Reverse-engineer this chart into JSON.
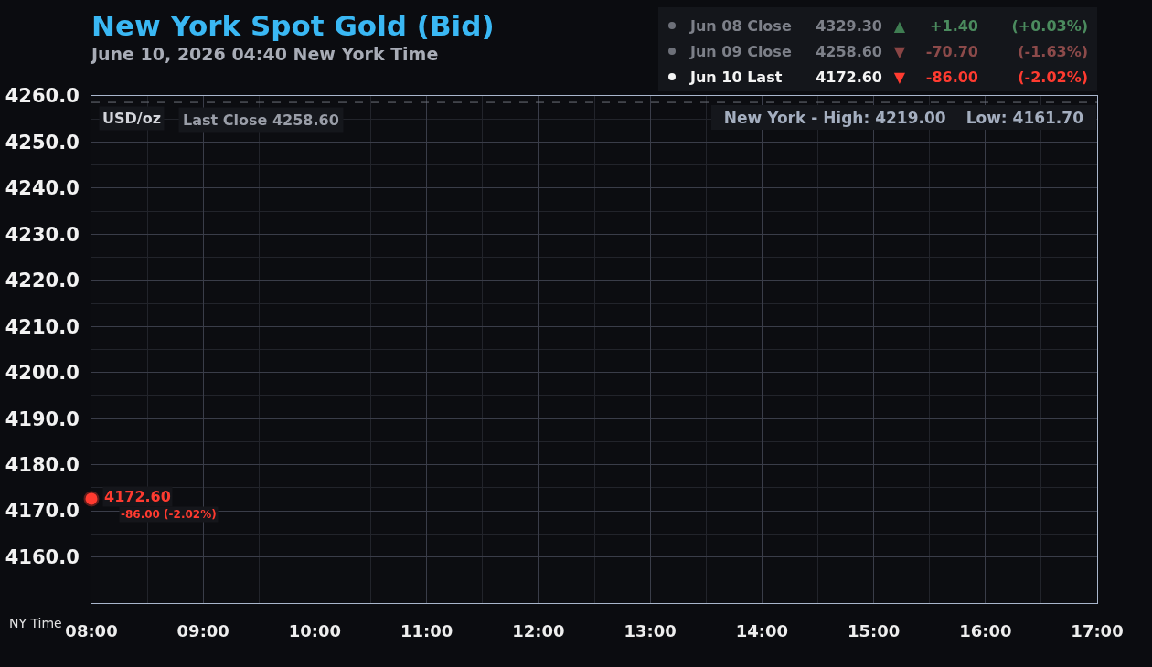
{
  "chart_data": {
    "type": "line",
    "title": "New York Spot Gold (Bid)",
    "subtitle": "June 10, 2026 04:40 New York Time",
    "xlabel": "NY Time",
    "ylabel": "USD/oz",
    "x": [
      8
    ],
    "values": [
      4172.6
    ],
    "color": "#ff3b30",
    "value_labels": [
      "4172.60"
    ],
    "marker": "circle",
    "xlim": [
      8,
      17
    ],
    "xticks": [
      {
        "value": 8,
        "label": "08:00"
      },
      {
        "value": 9,
        "label": "09:00"
      },
      {
        "value": 10,
        "label": "10:00"
      },
      {
        "value": 11,
        "label": "11:00"
      },
      {
        "value": 12,
        "label": "12:00"
      },
      {
        "value": 13,
        "label": "13:00"
      },
      {
        "value": 14,
        "label": "14:00"
      },
      {
        "value": 15,
        "label": "15:00"
      },
      {
        "value": 16,
        "label": "16:00"
      },
      {
        "value": 17,
        "label": "17:00"
      }
    ],
    "ylim": [
      4150,
      4260
    ],
    "yticks": [
      {
        "value": 4160,
        "label": "4160.0"
      },
      {
        "value": 4170,
        "label": "4170.0"
      },
      {
        "value": 4180,
        "label": "4180.0"
      },
      {
        "value": 4190,
        "label": "4190.0"
      },
      {
        "value": 4200,
        "label": "4200.0"
      },
      {
        "value": 4210,
        "label": "4210.0"
      },
      {
        "value": 4220,
        "label": "4220.0"
      },
      {
        "value": 4230,
        "label": "4230.0"
      },
      {
        "value": 4240,
        "label": "4240.0"
      },
      {
        "value": 4250,
        "label": "4250.0"
      },
      {
        "value": 4260,
        "label": "4260.0"
      }
    ],
    "grid": true,
    "ref_lines": [
      {
        "axis": "y",
        "value": 4258.6,
        "label": "Last Close 4258.60",
        "line_style": "dashed",
        "color": "#6e717b"
      }
    ],
    "annotations": [
      {
        "text": "-86.00 (-2.02%)",
        "x": 8,
        "y": 4172.6
      },
      "New York - High: 4219.00",
      "Low: 4161.70",
      "Jun 08 Close",
      "4329.30",
      "▲",
      "+1.40",
      "(+0.03%)",
      "Jun 09 Close",
      "4258.60",
      "▼",
      "-70.70",
      "(-1.63%)",
      "Jun 10 Last",
      "4172.60",
      "▼",
      "-86.00",
      "(-2.02%)"
    ]
  }
}
